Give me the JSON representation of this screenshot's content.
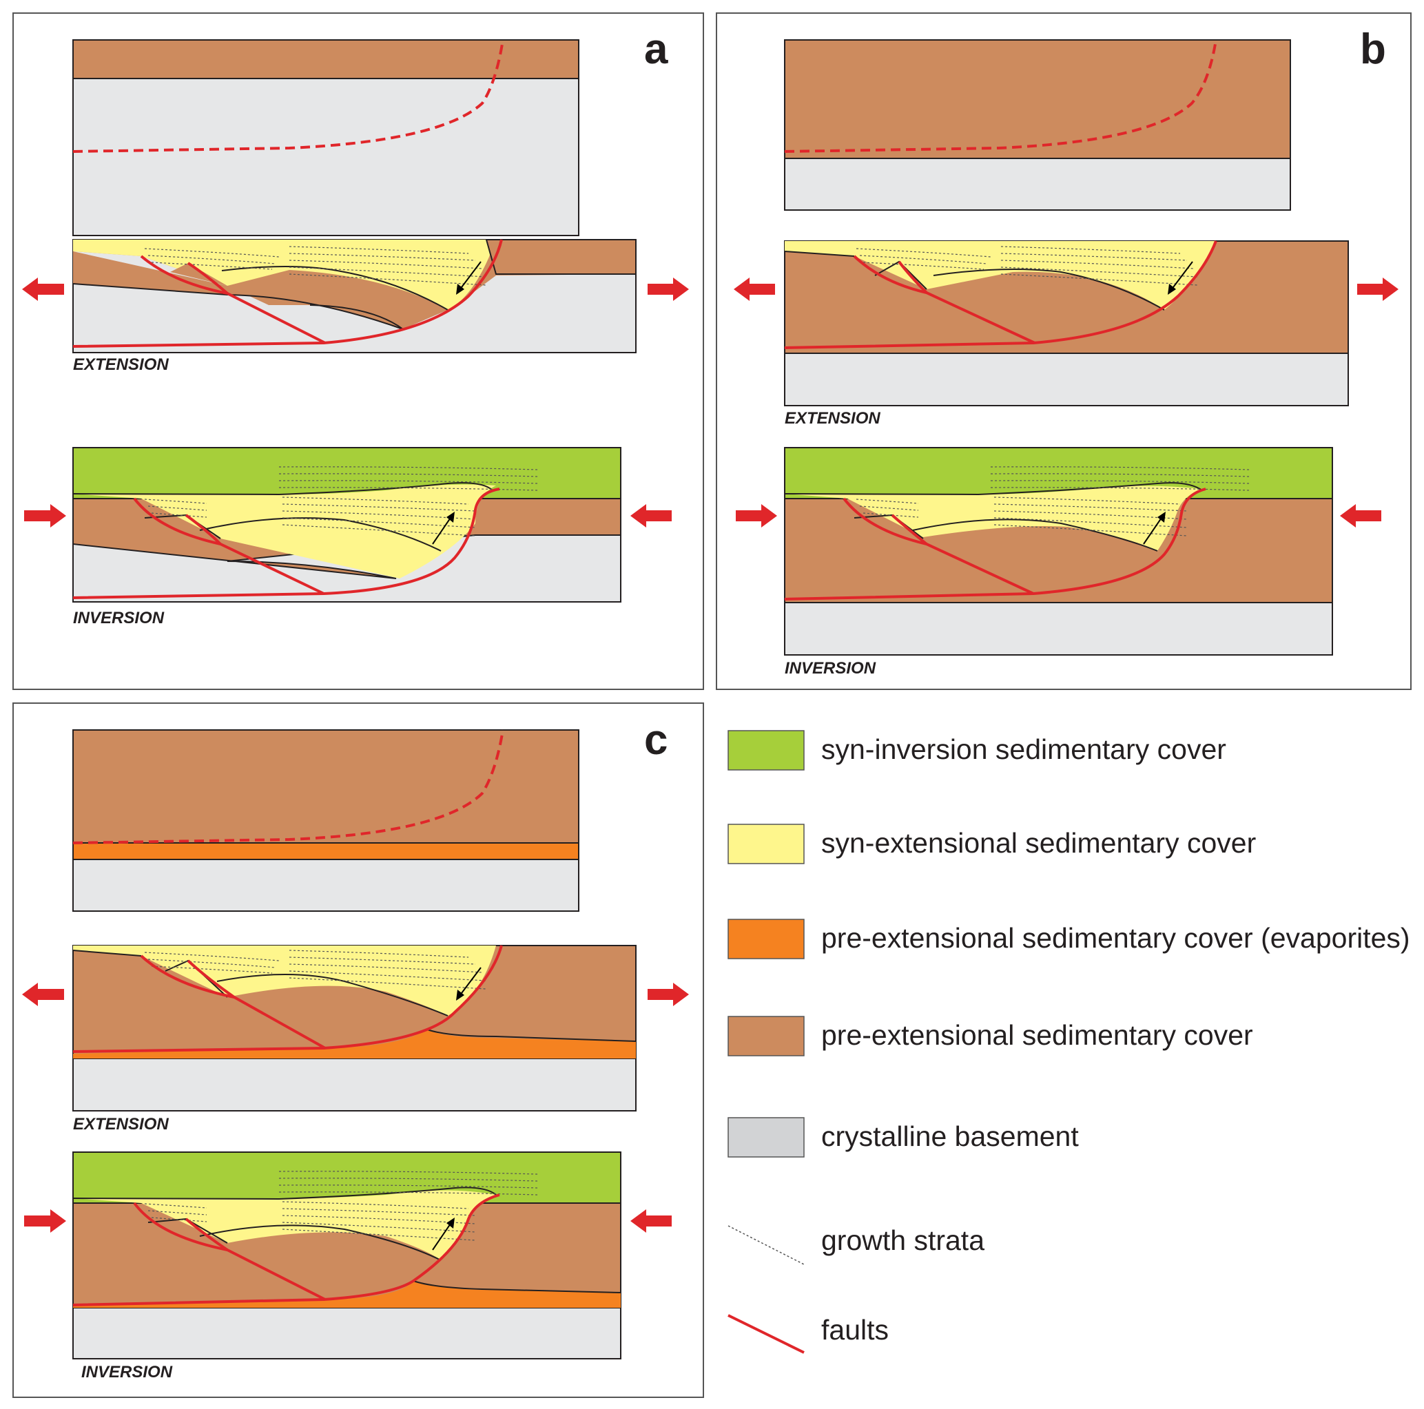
{
  "panels": [
    {
      "id": "a",
      "label": "a",
      "stages": [
        "EXTENSION",
        "INVERSION"
      ]
    },
    {
      "id": "b",
      "label": "b",
      "stages": [
        "EXTENSION",
        "INVERSION"
      ]
    },
    {
      "id": "c",
      "label": "c",
      "stages": [
        "EXTENSION",
        "INVERSION"
      ]
    }
  ],
  "legend": [
    {
      "label": "syn-inversion sedimentary cover",
      "color": "#a6cf3a",
      "kind": "swatch"
    },
    {
      "label": "syn-extensional sedimentary cover",
      "color": "#fef68c",
      "kind": "swatch"
    },
    {
      "label": "pre-extensional sedimentary cover (evaporites)",
      "color": "#f58220",
      "kind": "swatch"
    },
    {
      "label": "pre-extensional sedimentary cover",
      "color": "#cd8b5e",
      "kind": "swatch"
    },
    {
      "label": "crystalline basement",
      "color": "#d2d3d5",
      "kind": "swatch"
    },
    {
      "label": "growth strata",
      "kind": "dotted-line"
    },
    {
      "label": "faults",
      "color": "#e0262a",
      "kind": "red-line"
    }
  ],
  "colors": {
    "syn_inversion": "#a6cf3a",
    "syn_extensional": "#fef68c",
    "evaporites": "#f58220",
    "pre_extensional": "#cd8b5e",
    "basement_light": "#e6e7e8",
    "basement": "#d2d3d5",
    "fault": "#e0262a",
    "frame": "#555555"
  }
}
